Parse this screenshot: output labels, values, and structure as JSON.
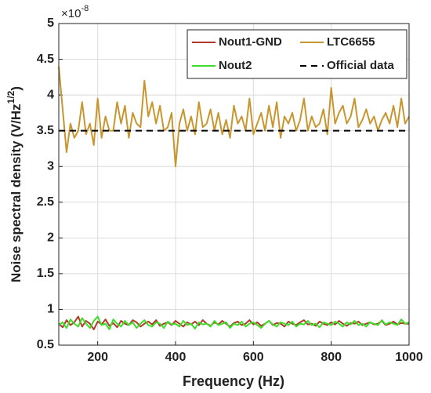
{
  "chart_data": {
    "type": "line",
    "xlabel": "Frequency (Hz)",
    "ylabel": "Noise spectral density (V/Hz",
    "ylabel_exponent": "1/2",
    "ylabel_end": ")",
    "y_multiplier": "×10",
    "y_multiplier_exponent": "-8",
    "xlim": [
      100,
      1000
    ],
    "xticks": [
      200,
      400,
      600,
      800,
      1000
    ],
    "ylim": [
      0.5,
      5
    ],
    "yticks": [
      0.5,
      1,
      1.5,
      2,
      2.5,
      3,
      3.5,
      4,
      4.5,
      5
    ],
    "grid": true,
    "legend": "northeast",
    "x": [
      100,
      110,
      120,
      130,
      140,
      150,
      160,
      170,
      180,
      190,
      200,
      210,
      220,
      230,
      240,
      250,
      260,
      270,
      280,
      290,
      300,
      310,
      320,
      330,
      340,
      350,
      360,
      370,
      380,
      390,
      400,
      410,
      420,
      430,
      440,
      450,
      460,
      470,
      480,
      490,
      500,
      510,
      520,
      530,
      540,
      550,
      560,
      570,
      580,
      590,
      600,
      610,
      620,
      630,
      640,
      650,
      660,
      670,
      680,
      690,
      700,
      710,
      720,
      730,
      740,
      750,
      760,
      770,
      780,
      790,
      800,
      810,
      820,
      830,
      840,
      850,
      860,
      870,
      880,
      890,
      900,
      910,
      920,
      930,
      940,
      950,
      960,
      970,
      980,
      990,
      1000
    ],
    "series": [
      {
        "name": "Nout1-GND",
        "color": "#b0392b",
        "values": [
          0.8,
          0.75,
          0.85,
          0.78,
          0.82,
          0.9,
          0.76,
          0.84,
          0.8,
          0.72,
          0.83,
          0.79,
          0.86,
          0.77,
          0.81,
          0.75,
          0.84,
          0.8,
          0.78,
          0.85,
          0.82,
          0.76,
          0.8,
          0.83,
          0.79,
          0.85,
          0.77,
          0.8,
          0.82,
          0.78,
          0.84,
          0.8,
          0.76,
          0.82,
          0.79,
          0.83,
          0.78,
          0.85,
          0.8,
          0.77,
          0.82,
          0.79,
          0.84,
          0.8,
          0.76,
          0.81,
          0.83,
          0.78,
          0.8,
          0.85,
          0.79,
          0.82,
          0.77,
          0.8,
          0.84,
          0.78,
          0.81,
          0.8,
          0.76,
          0.83,
          0.8,
          0.78,
          0.82,
          0.85,
          0.79,
          0.8,
          0.77,
          0.83,
          0.8,
          0.78,
          0.82,
          0.79,
          0.84,
          0.8,
          0.77,
          0.81,
          0.8,
          0.83,
          0.78,
          0.8,
          0.82,
          0.79,
          0.8,
          0.84,
          0.78,
          0.8,
          0.83,
          0.79,
          0.81,
          0.8,
          0.8
        ]
      },
      {
        "name": "LTC6655",
        "color": "#c8962e",
        "values": [
          4.4,
          3.8,
          3.2,
          3.6,
          3.4,
          3.5,
          3.9,
          3.45,
          3.6,
          3.3,
          3.95,
          3.4,
          3.7,
          3.5,
          3.5,
          3.9,
          3.6,
          3.85,
          3.4,
          3.75,
          3.6,
          3.55,
          4.2,
          3.7,
          3.9,
          3.6,
          3.85,
          3.5,
          3.55,
          3.75,
          3.0,
          3.6,
          3.8,
          3.5,
          3.7,
          3.45,
          3.9,
          3.55,
          3.6,
          3.8,
          3.5,
          3.75,
          3.45,
          3.65,
          3.4,
          3.85,
          3.6,
          3.7,
          3.5,
          3.95,
          3.45,
          3.6,
          3.75,
          3.5,
          3.85,
          3.55,
          3.9,
          3.4,
          3.7,
          3.6,
          3.75,
          3.5,
          3.65,
          3.95,
          3.5,
          3.7,
          3.55,
          3.6,
          3.8,
          3.45,
          4.1,
          3.6,
          3.75,
          3.85,
          3.6,
          3.7,
          3.95,
          3.55,
          3.65,
          3.8,
          3.6,
          3.7,
          3.5,
          3.65,
          3.75,
          3.6,
          3.85,
          3.55,
          3.95,
          3.6,
          3.7
        ]
      },
      {
        "name": "Nout2",
        "color": "#3fdc2a",
        "values": [
          0.78,
          0.82,
          0.74,
          0.86,
          0.8,
          0.76,
          0.88,
          0.8,
          0.74,
          0.84,
          0.9,
          0.78,
          0.8,
          0.72,
          0.86,
          0.8,
          0.76,
          0.84,
          0.78,
          0.82,
          0.74,
          0.8,
          0.85,
          0.78,
          0.76,
          0.82,
          0.8,
          0.74,
          0.83,
          0.79,
          0.8,
          0.76,
          0.84,
          0.78,
          0.8,
          0.73,
          0.82,
          0.79,
          0.8,
          0.76,
          0.84,
          0.78,
          0.8,
          0.82,
          0.74,
          0.8,
          0.78,
          0.83,
          0.76,
          0.8,
          0.82,
          0.78,
          0.74,
          0.8,
          0.84,
          0.79,
          0.76,
          0.82,
          0.8,
          0.78,
          0.83,
          0.76,
          0.8,
          0.79,
          0.84,
          0.78,
          0.8,
          0.75,
          0.82,
          0.8,
          0.78,
          0.83,
          0.8,
          0.76,
          0.82,
          0.79,
          0.84,
          0.78,
          0.8,
          0.76,
          0.82,
          0.8,
          0.78,
          0.85,
          0.79,
          0.82,
          0.8,
          0.78,
          0.86,
          0.8,
          0.82
        ]
      },
      {
        "name": "Official data",
        "color": "#000000",
        "dashed": true,
        "x": [
          100,
          1000
        ],
        "values": [
          3.5,
          3.5
        ]
      }
    ]
  }
}
